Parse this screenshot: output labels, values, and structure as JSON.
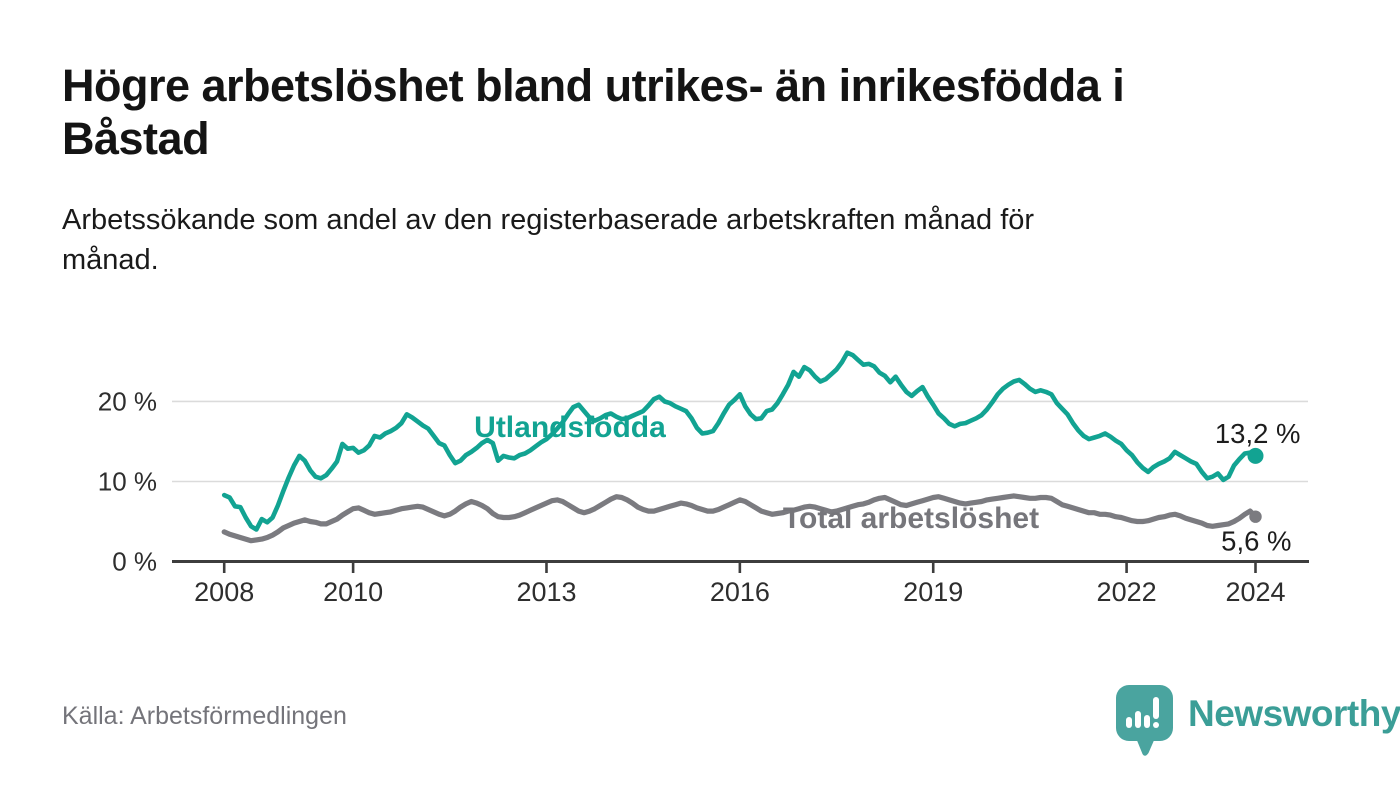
{
  "header": {
    "title": "Högre arbetslöshet bland utrikes- än inrikesfödda i\nBåstad",
    "subtitle": "Arbetssökande som andel av den registerbaserade arbetskraften månad för\nmånad."
  },
  "footer": {
    "source": "Källa: Arbetsförmedlingen",
    "brand": "Newsworthy"
  },
  "colors": {
    "series_foreign_born": "#12a392",
    "series_total": "#7b7b80",
    "axis": "#3d3d3d",
    "grid": "#dbdbdb",
    "tick_label": "#2e2e2e",
    "value_label": "#1d1d1d",
    "total_label": "#76767b",
    "logo_bubble": "#4aa49f",
    "logo_text": "#3b9e97"
  },
  "chart_data": {
    "type": "line",
    "title": "Högre arbetslöshet bland utrikes- än inrikesfödda i Båstad",
    "subtitle": "Arbetssökande som andel av den registerbaserade arbetskraften månad för månad.",
    "xlabel": "",
    "ylabel": "",
    "grid": "horizontal-gridlines-at-10-and-20",
    "legend_position": "inline-labels-on-lines",
    "xlim": [
      2007.19,
      2024.83
    ],
    "ylim": [
      0,
      27.06
    ],
    "x_tick_years": [
      2008,
      2010,
      2013,
      2016,
      2019,
      2022,
      2024
    ],
    "x_tick_labels": [
      "2008",
      "2010",
      "2013",
      "2016",
      "2019",
      "2022",
      "2024"
    ],
    "y_ticks": [
      0,
      10,
      20
    ],
    "y_tick_labels": [
      "0 %",
      "10 %",
      "20 %"
    ],
    "x_unit": "monthly observations from January 2008 to January 2024",
    "series": [
      {
        "name": "Utlandsfödda",
        "label_text": "Utlandsfödda",
        "end_label": "13,2 %",
        "end_value": 13.2,
        "color": "#12a392",
        "x_start_year": 2008,
        "step_months": 1,
        "values": [
          8.3,
          8.0,
          6.9,
          6.8,
          5.5,
          4.4,
          4.0,
          5.3,
          4.9,
          5.5,
          7.0,
          8.8,
          10.5,
          12.0,
          13.2,
          12.6,
          11.4,
          10.6,
          10.4,
          10.8,
          11.6,
          12.5,
          14.7,
          14.1,
          14.2,
          13.6,
          13.9,
          14.5,
          15.7,
          15.5,
          16.0,
          16.3,
          16.7,
          17.3,
          18.4,
          18.0,
          17.5,
          17.0,
          16.6,
          15.7,
          14.8,
          14.5,
          13.3,
          12.3,
          12.6,
          13.3,
          13.7,
          14.2,
          14.8,
          15.2,
          14.8,
          12.6,
          13.2,
          13.0,
          12.9,
          13.3,
          13.5,
          13.9,
          14.4,
          14.9,
          15.3,
          15.9,
          16.6,
          17.4,
          18.4,
          19.3,
          19.6,
          18.8,
          18.0,
          17.6,
          17.9,
          18.3,
          18.5,
          18.1,
          17.8,
          17.9,
          18.2,
          18.5,
          18.8,
          19.5,
          20.3,
          20.6,
          20.0,
          19.8,
          19.4,
          19.1,
          18.8,
          17.9,
          16.7,
          16.0,
          16.1,
          16.3,
          17.3,
          18.5,
          19.6,
          20.2,
          20.9,
          19.4,
          18.4,
          17.8,
          17.9,
          18.8,
          19.0,
          19.8,
          20.9,
          22.1,
          23.7,
          23.1,
          24.3,
          23.9,
          23.1,
          22.5,
          22.8,
          23.4,
          24.0,
          24.9,
          26.1,
          25.8,
          25.2,
          24.6,
          24.7,
          24.4,
          23.6,
          23.2,
          22.4,
          23.1,
          22.1,
          21.2,
          20.7,
          21.3,
          21.8,
          20.6,
          19.6,
          18.5,
          17.9,
          17.2,
          16.9,
          17.2,
          17.3,
          17.6,
          17.9,
          18.3,
          19.0,
          19.9,
          20.9,
          21.6,
          22.1,
          22.5,
          22.7,
          22.2,
          21.6,
          21.2,
          21.4,
          21.2,
          20.9,
          19.8,
          19.1,
          18.4,
          17.3,
          16.4,
          15.7,
          15.3,
          15.5,
          15.7,
          16.0,
          15.6,
          15.1,
          14.7,
          13.9,
          13.3,
          12.4,
          11.7,
          11.2,
          11.8,
          12.2,
          12.5,
          12.9,
          13.7,
          13.3,
          12.9,
          12.5,
          12.2,
          11.2,
          10.4,
          10.6,
          11.0,
          10.2,
          10.6,
          12.0,
          12.8,
          13.5,
          13.6,
          13.2
        ]
      },
      {
        "name": "Total arbetslöshet",
        "label_text": "Total arbetslöshet",
        "end_label": "5,6 %",
        "end_value": 5.6,
        "color": "#7b7b80",
        "x_start_year": 2008,
        "step_months": 1,
        "values": [
          3.7,
          3.4,
          3.2,
          3.0,
          2.8,
          2.6,
          2.7,
          2.8,
          3.0,
          3.3,
          3.7,
          4.2,
          4.5,
          4.8,
          5.0,
          5.2,
          5.0,
          4.9,
          4.7,
          4.7,
          5.0,
          5.3,
          5.8,
          6.2,
          6.6,
          6.7,
          6.4,
          6.1,
          5.9,
          6.0,
          6.1,
          6.2,
          6.4,
          6.6,
          6.7,
          6.8,
          6.9,
          6.8,
          6.5,
          6.2,
          5.9,
          5.7,
          5.9,
          6.3,
          6.8,
          7.2,
          7.5,
          7.3,
          7.0,
          6.6,
          6.0,
          5.6,
          5.5,
          5.5,
          5.6,
          5.8,
          6.1,
          6.4,
          6.7,
          7.0,
          7.3,
          7.6,
          7.7,
          7.5,
          7.1,
          6.7,
          6.3,
          6.1,
          6.3,
          6.6,
          7.0,
          7.4,
          7.8,
          8.1,
          8.0,
          7.7,
          7.3,
          6.8,
          6.5,
          6.3,
          6.3,
          6.5,
          6.7,
          6.9,
          7.1,
          7.3,
          7.2,
          7.0,
          6.7,
          6.5,
          6.3,
          6.3,
          6.5,
          6.8,
          7.1,
          7.4,
          7.7,
          7.5,
          7.1,
          6.7,
          6.3,
          6.1,
          5.9,
          6.0,
          6.1,
          6.3,
          6.4,
          6.6,
          6.8,
          6.9,
          6.8,
          6.6,
          6.4,
          6.2,
          6.3,
          6.5,
          6.7,
          6.9,
          7.1,
          7.2,
          7.4,
          7.7,
          7.9,
          8.0,
          7.7,
          7.4,
          7.1,
          7.0,
          7.2,
          7.4,
          7.6,
          7.8,
          8.0,
          8.1,
          7.9,
          7.7,
          7.5,
          7.3,
          7.2,
          7.3,
          7.4,
          7.5,
          7.7,
          7.8,
          7.9,
          8.0,
          8.1,
          8.2,
          8.1,
          8.0,
          7.9,
          7.9,
          8.0,
          8.0,
          7.9,
          7.5,
          7.1,
          6.9,
          6.7,
          6.5,
          6.3,
          6.1,
          6.1,
          5.9,
          5.9,
          5.8,
          5.6,
          5.5,
          5.3,
          5.1,
          5.0,
          5.0,
          5.1,
          5.3,
          5.5,
          5.6,
          5.8,
          5.9,
          5.7,
          5.4,
          5.2,
          5.0,
          4.8,
          4.5,
          4.4,
          4.5,
          4.6,
          4.7,
          5.0,
          5.4,
          5.9,
          6.3,
          5.6
        ]
      }
    ]
  }
}
